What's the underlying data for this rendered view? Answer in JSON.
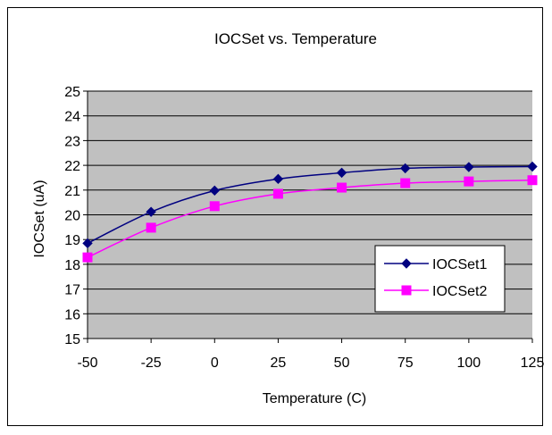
{
  "chart_data": {
    "type": "line",
    "title": "IOCSet vs. Temperature",
    "xlabel": "Temperature (C)",
    "ylabel": "IOCSet (uA)",
    "x": [
      -50,
      -25,
      0,
      25,
      50,
      75,
      100,
      125
    ],
    "ylim": [
      15,
      25
    ],
    "yticks": [
      15,
      16,
      17,
      18,
      19,
      20,
      21,
      22,
      23,
      24,
      25
    ],
    "xtick_labels": [
      "-50",
      "-25",
      "0",
      "25",
      "50",
      "75",
      "100",
      "125"
    ],
    "grid": true,
    "legend_position": "right",
    "plot_background": "#c0c0c0",
    "series": [
      {
        "name": "IOCSet1",
        "values": [
          18.85,
          20.12,
          20.98,
          21.45,
          21.7,
          21.88,
          21.93,
          21.95
        ],
        "color": "#000080",
        "marker": "diamond"
      },
      {
        "name": "IOCSet2",
        "values": [
          18.28,
          19.48,
          20.35,
          20.85,
          21.1,
          21.28,
          21.35,
          21.4
        ],
        "color": "#ff00ff",
        "marker": "square"
      }
    ]
  }
}
